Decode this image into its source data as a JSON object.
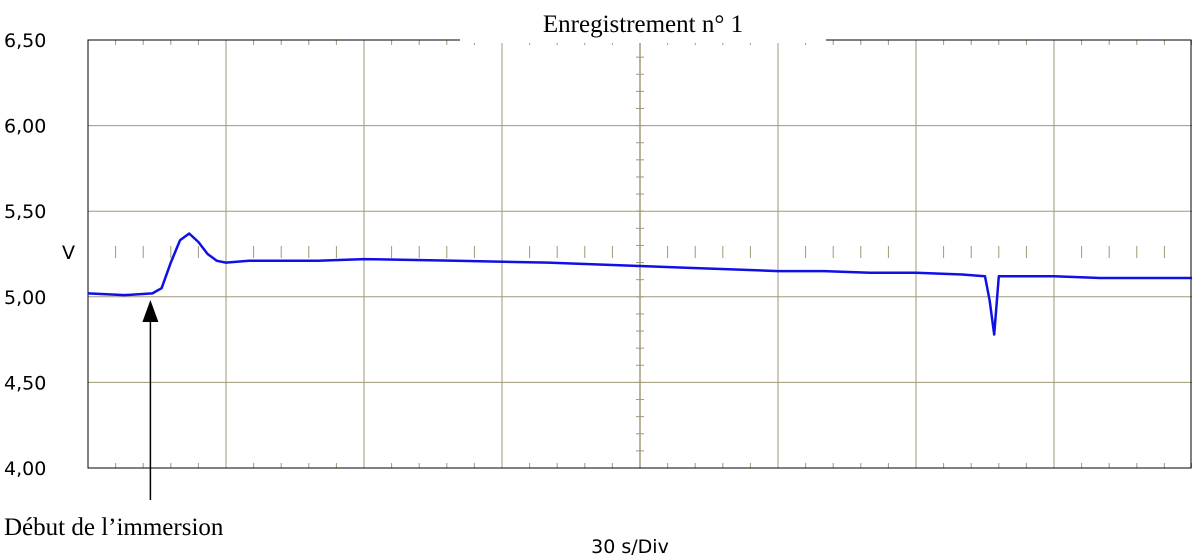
{
  "chart_data": {
    "type": "line",
    "title": "Enregistrement n° 1",
    "ylabel": "V",
    "xlabel": "30 s/Div",
    "annotation": "Début de l’immersion",
    "ylim": [
      4.0,
      6.5
    ],
    "y_ticks": [
      "6,50",
      "6,00",
      "5,50",
      "5,00",
      "4,50",
      "4,00"
    ],
    "x_divisions": 8,
    "x_unit_per_div_s": 30,
    "xlim": [
      0,
      240
    ],
    "grid": true,
    "colors": {
      "series": "#1010e6",
      "grid": "#a09a78",
      "frame": "#000000"
    },
    "series": [
      {
        "x": [
          0,
          8,
          14,
          16,
          18,
          20,
          22,
          24,
          26,
          28,
          30,
          35,
          40,
          50,
          60,
          80,
          100,
          120,
          130,
          140,
          150,
          160,
          170,
          180,
          190,
          195,
          196,
          197,
          198,
          200,
          210,
          220,
          240
        ],
        "y": [
          5.02,
          5.01,
          5.02,
          5.05,
          5.2,
          5.33,
          5.37,
          5.32,
          5.25,
          5.21,
          5.2,
          5.21,
          5.21,
          5.21,
          5.22,
          5.21,
          5.2,
          5.18,
          5.17,
          5.16,
          5.15,
          5.15,
          5.14,
          5.14,
          5.13,
          5.12,
          4.98,
          4.78,
          5.12,
          5.12,
          5.12,
          5.11,
          5.11
        ]
      }
    ],
    "annotation_x": 14
  }
}
